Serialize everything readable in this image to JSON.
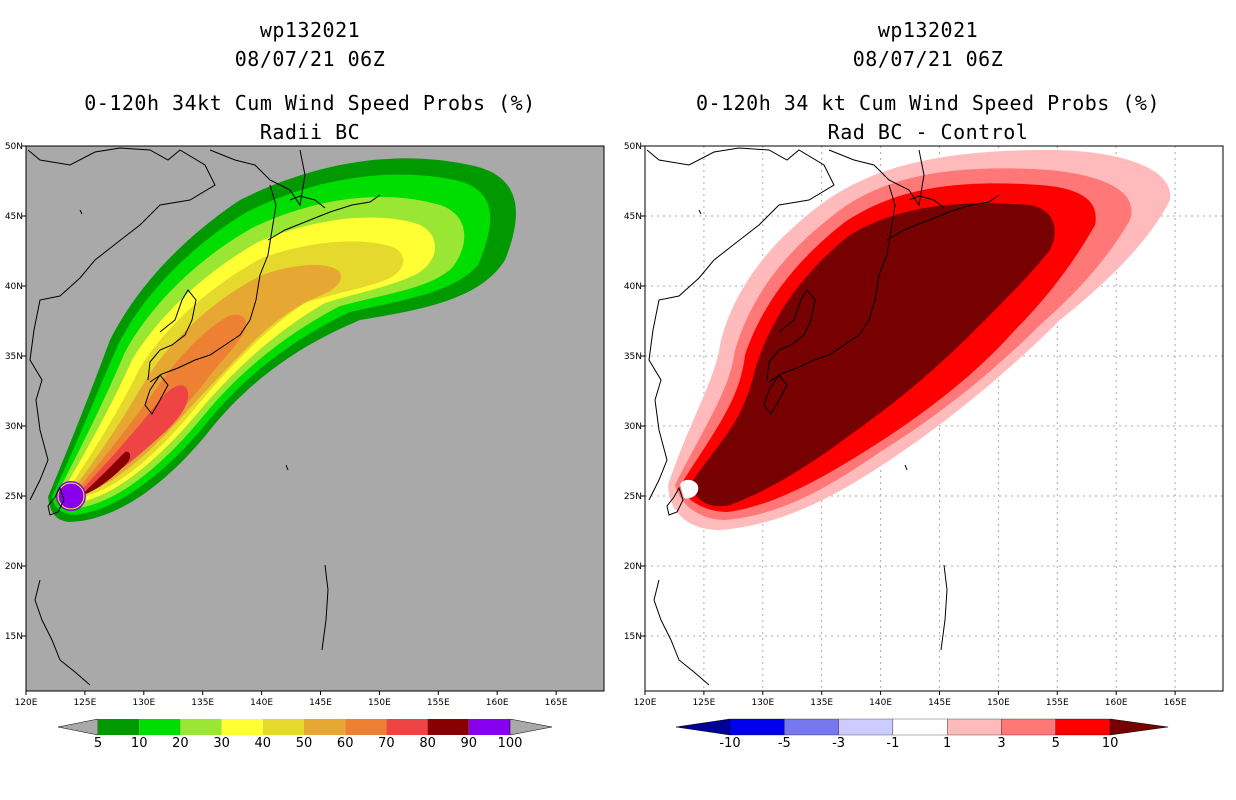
{
  "left_panel": {
    "storm_id": "wp132021",
    "datetime": "08/07/21 06Z",
    "title": "0-120h 34kt Cum Wind Speed Probs (%)",
    "subtitle": "Radii BC",
    "colorbar": {
      "labels": [
        "5",
        "10",
        "20",
        "30",
        "40",
        "50",
        "60",
        "70",
        "80",
        "90",
        "100"
      ],
      "colors": [
        "#009900",
        "#00dd00",
        "#99e633",
        "#ffff33",
        "#e6d92e",
        "#e6a733",
        "#ee8033",
        "#ee4444",
        "#880000",
        "#8800ee"
      ]
    }
  },
  "right_panel": {
    "storm_id": "wp132021",
    "datetime": "08/07/21 06Z",
    "title": "0-120h 34 kt Cum Wind Speed Probs (%)",
    "subtitle": "Rad BC - Control",
    "colorbar": {
      "labels": [
        "-10",
        "-5",
        "-3",
        "-1",
        "1",
        "3",
        "5",
        "10"
      ],
      "colors": [
        "#000099",
        "#0000ee",
        "#7777ee",
        "#ccccff",
        "#ffffff",
        "#ffbbbb",
        "#ff7777",
        "#ff0000",
        "#770000"
      ]
    }
  },
  "axes": {
    "lon_labels": [
      "120E",
      "125E",
      "130E",
      "135E",
      "140E",
      "145E",
      "150E",
      "155E",
      "160E",
      "165E"
    ],
    "lat_labels": [
      "50N",
      "45N",
      "40N",
      "35N",
      "30N",
      "25N",
      "20N",
      "15N"
    ]
  }
}
